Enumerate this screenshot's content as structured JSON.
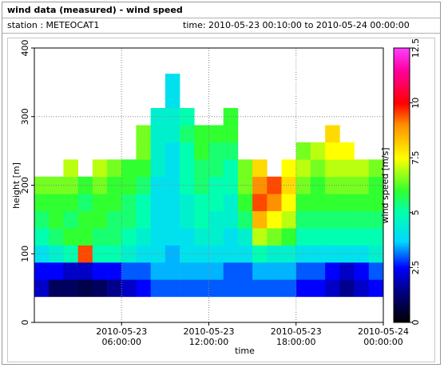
{
  "header": {
    "title": "wind data (measured) - wind speed",
    "station": "station : METEOCAT1",
    "time": "time: 2010-05-23 00:10:00 to 2010-05-24 00:00:00"
  },
  "chart_data": {
    "type": "heatmap",
    "xlabel": "time",
    "ylabel": "height [m]",
    "colorbar_label": "wind speed [m/s]",
    "xlim": [
      0,
      24
    ],
    "xticks": [
      {
        "value": 6,
        "label": "2010-05-23\n06:00:00"
      },
      {
        "value": 12,
        "label": "2010-05-23\n12:00:00"
      },
      {
        "value": 18,
        "label": "2010-05-23\n18:00:00"
      },
      {
        "value": 24,
        "label": "2010-05-24\n00:00:00"
      }
    ],
    "ylim": [
      0,
      400
    ],
    "yticks": [
      0,
      100,
      200,
      300,
      400
    ],
    "clim": [
      0,
      12.5
    ],
    "cticks": [
      0,
      2.5,
      5,
      7.5,
      10,
      12.5
    ],
    "colorscale": [
      [
        0,
        "#000000"
      ],
      [
        1.5,
        "#00008c"
      ],
      [
        2.5,
        "#0000ff"
      ],
      [
        3.7,
        "#00d8ff"
      ],
      [
        5,
        "#00ffb0"
      ],
      [
        6,
        "#30ff30"
      ],
      [
        7.5,
        "#ffff00"
      ],
      [
        9,
        "#ff9000"
      ],
      [
        10,
        "#ff0000"
      ],
      [
        11.5,
        "#ff00a0"
      ],
      [
        12.5,
        "#ff40ff"
      ]
    ],
    "grid": true,
    "x": [
      0.5,
      1.5,
      2.5,
      3.5,
      4.5,
      5.5,
      6.5,
      7.5,
      8.5,
      9.5,
      10.5,
      11.5,
      12.5,
      13.5,
      14.5,
      15.5,
      16.5,
      17.5,
      18.5,
      19.5,
      20.5,
      21.5,
      22.5,
      23.5
    ],
    "y": [
      50,
      75,
      100,
      125,
      150,
      175,
      200,
      225,
      250,
      275,
      300,
      325,
      350
    ],
    "values": [
      [
        2,
        2.5,
        4,
        5,
        5.5,
        6,
        6.5,
        null,
        null,
        null,
        null,
        null,
        null
      ],
      [
        1,
        2.5,
        4.5,
        5.5,
        6,
        6,
        6.5,
        null,
        null,
        null,
        null,
        null,
        null
      ],
      [
        1,
        2,
        5,
        6,
        5.5,
        6,
        6.5,
        7,
        null,
        null,
        null,
        null,
        null
      ],
      [
        0.8,
        2,
        9.5,
        6,
        6,
        5.5,
        6,
        null,
        null,
        null,
        null,
        null,
        null
      ],
      [
        1,
        2.5,
        5,
        5.5,
        6,
        6,
        6.5,
        7,
        null,
        null,
        null,
        null,
        null
      ],
      [
        1.5,
        2.5,
        5,
        5.5,
        5.5,
        6,
        6,
        6.5,
        null,
        null,
        null,
        null,
        null
      ],
      [
        2,
        3,
        4.5,
        5,
        5.5,
        5.5,
        6,
        6,
        null,
        null,
        null,
        null,
        null
      ],
      [
        2.5,
        3,
        4,
        4.5,
        5,
        5,
        5.5,
        6,
        6.5,
        6.5,
        null,
        null,
        null
      ],
      [
        3,
        3.5,
        4,
        4,
        4,
        4,
        4,
        4.5,
        4.5,
        4.5,
        4.5,
        null,
        null
      ],
      [
        3,
        3.5,
        3.5,
        4,
        4,
        4,
        4,
        4,
        4,
        4.5,
        4.5,
        4,
        4
      ],
      [
        3,
        3.5,
        4,
        4,
        4.5,
        4.5,
        5,
        5,
        5,
        5.5,
        5,
        null,
        null
      ],
      [
        3,
        3.5,
        4,
        4.5,
        5,
        5,
        5.5,
        5.5,
        6,
        6,
        null,
        null,
        null
      ],
      [
        3,
        3.5,
        4,
        4.5,
        4.5,
        5,
        5,
        5.5,
        5.5,
        6,
        null,
        null,
        null
      ],
      [
        3,
        3,
        4,
        4,
        4.5,
        4.5,
        5,
        5,
        5.5,
        6,
        6,
        null,
        null
      ],
      [
        3,
        3,
        4,
        4.5,
        5.5,
        6,
        6.5,
        6.5,
        null,
        null,
        null,
        null,
        null
      ],
      [
        3,
        3.5,
        5,
        7,
        8.5,
        9.5,
        9,
        8,
        null,
        null,
        null,
        null,
        null
      ],
      [
        3,
        3.5,
        4.5,
        6.5,
        7.5,
        9,
        9.5,
        null,
        null,
        null,
        null,
        null,
        null
      ],
      [
        3,
        3.5,
        4.5,
        6,
        7,
        7.5,
        8,
        7.5,
        null,
        null,
        null,
        null,
        null
      ],
      [
        2.5,
        3,
        4,
        5,
        5.5,
        6,
        6.5,
        7,
        6.5,
        null,
        null,
        null,
        null
      ],
      [
        2.5,
        3,
        4,
        5,
        5.5,
        6,
        6,
        6.5,
        7,
        null,
        null,
        null,
        null
      ],
      [
        2,
        2.5,
        4,
        5,
        5.5,
        6,
        6.5,
        7,
        7.5,
        8,
        null,
        null,
        null
      ],
      [
        1.5,
        2,
        4,
        5,
        5.5,
        6,
        6.5,
        7,
        7.5,
        null,
        null,
        null,
        null
      ],
      [
        2,
        2.5,
        4,
        5,
        5.5,
        6,
        6.5,
        7,
        null,
        null,
        null,
        null,
        null
      ],
      [
        2.5,
        3,
        4.5,
        5,
        5.5,
        6,
        6,
        6.5,
        null,
        null,
        null,
        null,
        null
      ]
    ]
  }
}
